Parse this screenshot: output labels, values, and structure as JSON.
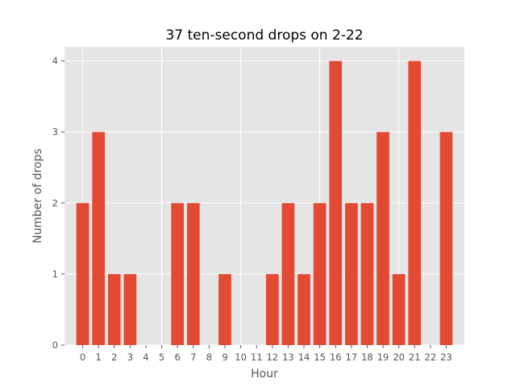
{
  "chart_data": {
    "type": "bar",
    "title": "37 ten-second drops on 2-22",
    "xlabel": "Hour",
    "ylabel": "Number of drops",
    "categories": [
      "0",
      "1",
      "2",
      "3",
      "4",
      "5",
      "6",
      "7",
      "8",
      "9",
      "10",
      "11",
      "12",
      "13",
      "14",
      "15",
      "16",
      "17",
      "18",
      "19",
      "20",
      "21",
      "22",
      "23"
    ],
    "values": [
      2,
      3,
      1,
      1,
      0,
      0,
      2,
      2,
      0,
      1,
      0,
      0,
      1,
      2,
      1,
      2,
      4,
      2,
      2,
      3,
      1,
      4,
      0,
      3
    ],
    "yticks": [
      0,
      1,
      2,
      3,
      4
    ],
    "ylim": [
      0,
      4.2
    ],
    "xlim": [
      -1.15,
      24.15
    ],
    "grid": true,
    "bar_color": "#E24A33",
    "background_color": "#E5E5E5"
  }
}
